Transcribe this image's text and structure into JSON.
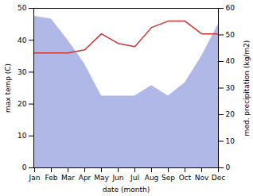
{
  "chart_data": {
    "type": "line",
    "categories": [
      "Jan",
      "Feb",
      "Mar",
      "Apr",
      "May",
      "Jun",
      "Jul",
      "Aug",
      "Sep",
      "Oct",
      "Nov",
      "Dec"
    ],
    "series": [
      {
        "type": "area",
        "color": "#b0b8e8",
        "axis": "y2",
        "values": [
          57,
          56,
          48,
          39,
          27,
          27,
          27,
          31,
          27,
          32,
          42,
          54
        ]
      },
      {
        "type": "line",
        "color": "#cc3333",
        "values": [
          36,
          36,
          36,
          37,
          42,
          39,
          38,
          44,
          46,
          46,
          42,
          42
        ]
      }
    ],
    "xlabel": "date (month)",
    "ylabel": "max temp (C)",
    "y2label": "med. precipitation (kg/m2)",
    "ylim": [
      0,
      50
    ],
    "yticks": [
      0,
      10,
      20,
      30,
      40,
      50
    ],
    "y2lim": [
      0,
      60
    ],
    "y2ticks": [
      0,
      10,
      20,
      30,
      40,
      50,
      60
    ],
    "grid": false
  }
}
